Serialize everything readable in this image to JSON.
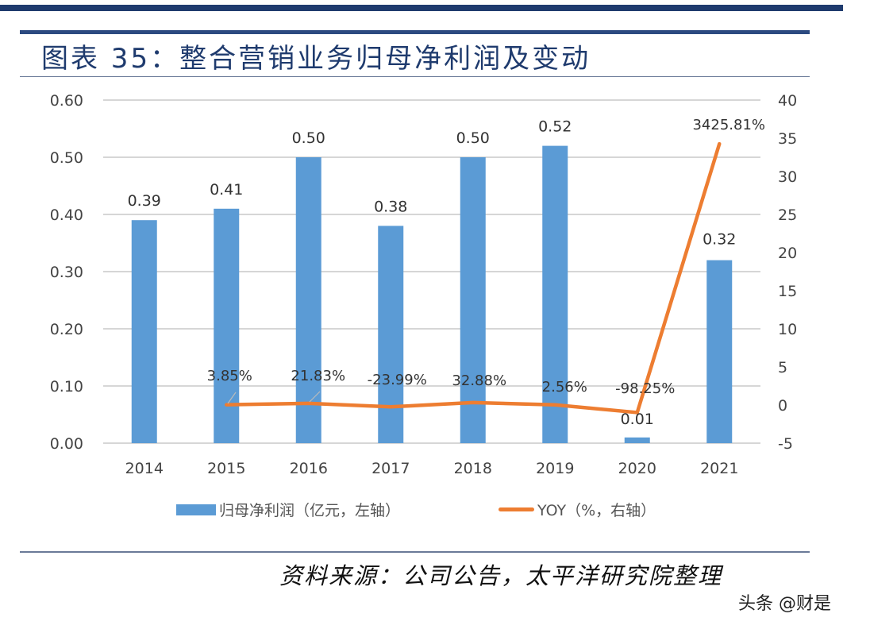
{
  "title": "图表 35：整合营销业务归母净利润及变动",
  "source": "资料来源：公司公告，太平洋研究院整理",
  "watermark": "头条 @财是",
  "colors": {
    "bar": "#5b9bd5",
    "line": "#ed7d31",
    "header": "#1f3b6e"
  },
  "chart_data": {
    "type": "bar",
    "title": "图表 35：整合营销业务归母净利润及变动",
    "categories": [
      "2014",
      "2015",
      "2016",
      "2017",
      "2018",
      "2019",
      "2020",
      "2021"
    ],
    "series": [
      {
        "name": "归母净利润（亿元，左轴）",
        "type": "bar",
        "axis": "left",
        "values": [
          0.39,
          0.41,
          0.5,
          0.38,
          0.5,
          0.52,
          0.01,
          0.32
        ],
        "labels": [
          "0.39",
          "0.41",
          "0.50",
          "0.38",
          "0.50",
          "0.52",
          "0.01",
          "0.32"
        ]
      },
      {
        "name": "YOY（%，右轴）",
        "type": "line",
        "axis": "right",
        "values": [
          null,
          0.0385,
          0.2183,
          -0.2399,
          0.3288,
          0.0256,
          -0.9825,
          34.2581
        ],
        "labels": [
          null,
          "3.85%",
          "21.83%",
          "-23.99%",
          "32.88%",
          "2.56%",
          "-98.25%",
          "3425.81%"
        ]
      }
    ],
    "left_axis": {
      "ylim": [
        0,
        0.6
      ],
      "ticks": [
        "0.00",
        "0.10",
        "0.20",
        "0.30",
        "0.40",
        "0.50",
        "0.60"
      ]
    },
    "right_axis": {
      "ylim": [
        -5,
        40
      ],
      "ticks": [
        "-5",
        "0",
        "5",
        "10",
        "15",
        "20",
        "25",
        "30",
        "35",
        "40"
      ]
    },
    "grid": true,
    "legend": [
      "归母净利润（亿元，左轴）",
      "YOY（%，右轴）"
    ],
    "legend_position": "bottom"
  }
}
